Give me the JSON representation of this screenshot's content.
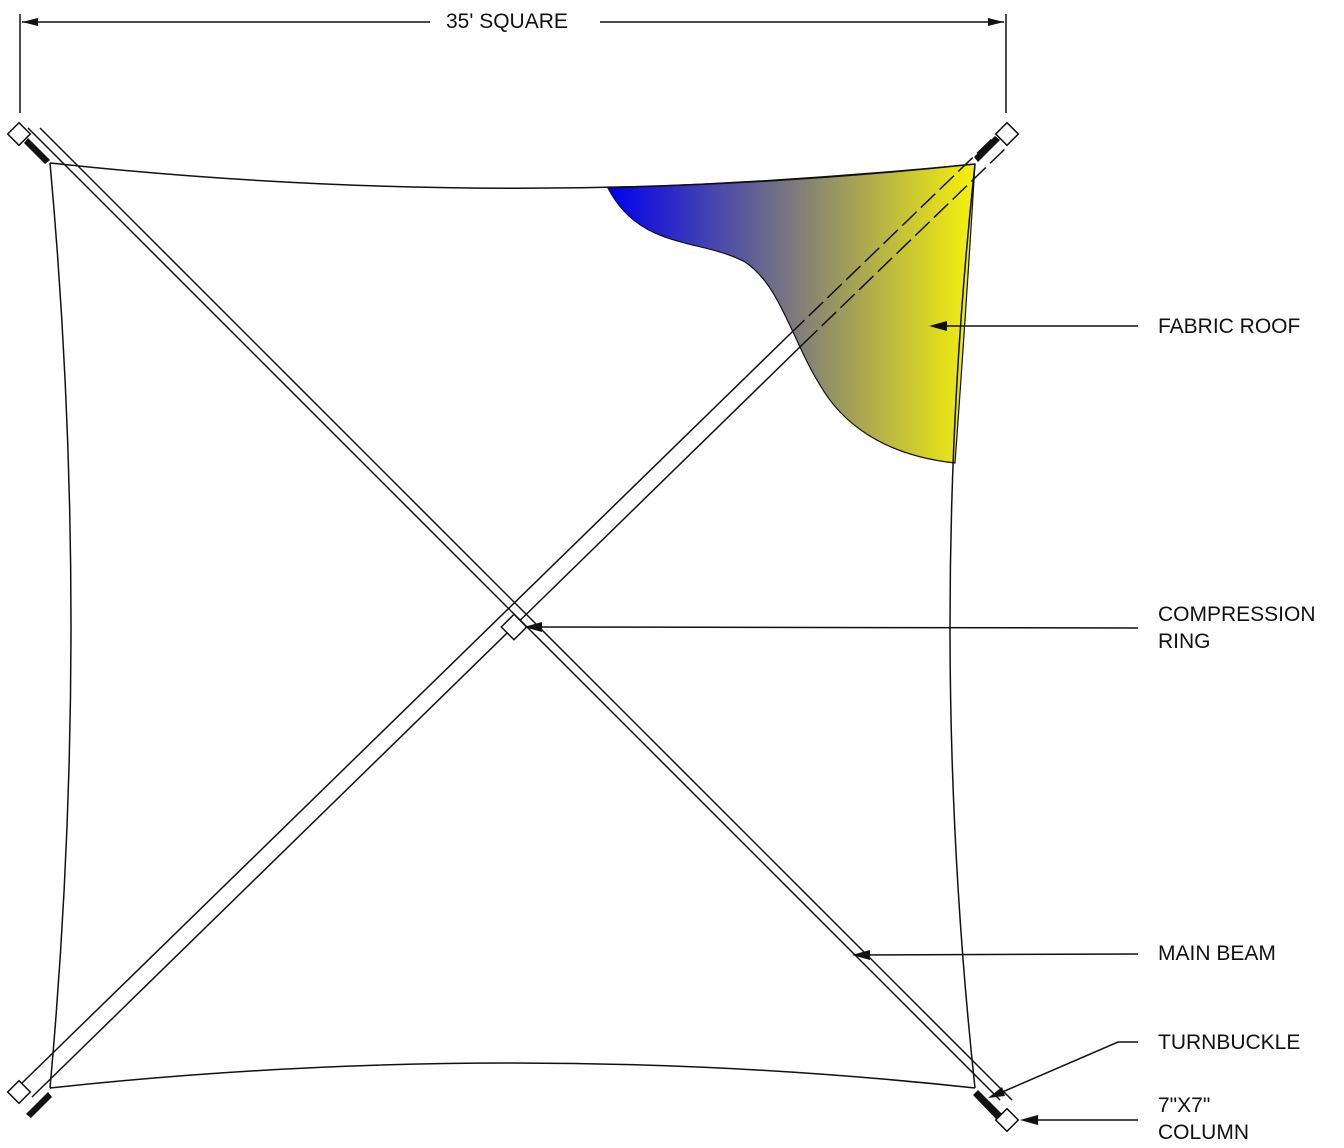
{
  "dimension": {
    "label": "35' SQUARE"
  },
  "callouts": {
    "fabric_roof": "FABRIC ROOF",
    "compression_ring_line1": "COMPRESSION",
    "compression_ring_line2": "RING",
    "main_beam": "MAIN BEAM",
    "turnbuckle": "TURNBUCKLE",
    "column_line1": "7\"X7\"",
    "column_line2": "COLUMN"
  },
  "colors": {
    "line": "#111111",
    "gradient_start": "#0000f0",
    "gradient_end": "#f6f20a"
  }
}
